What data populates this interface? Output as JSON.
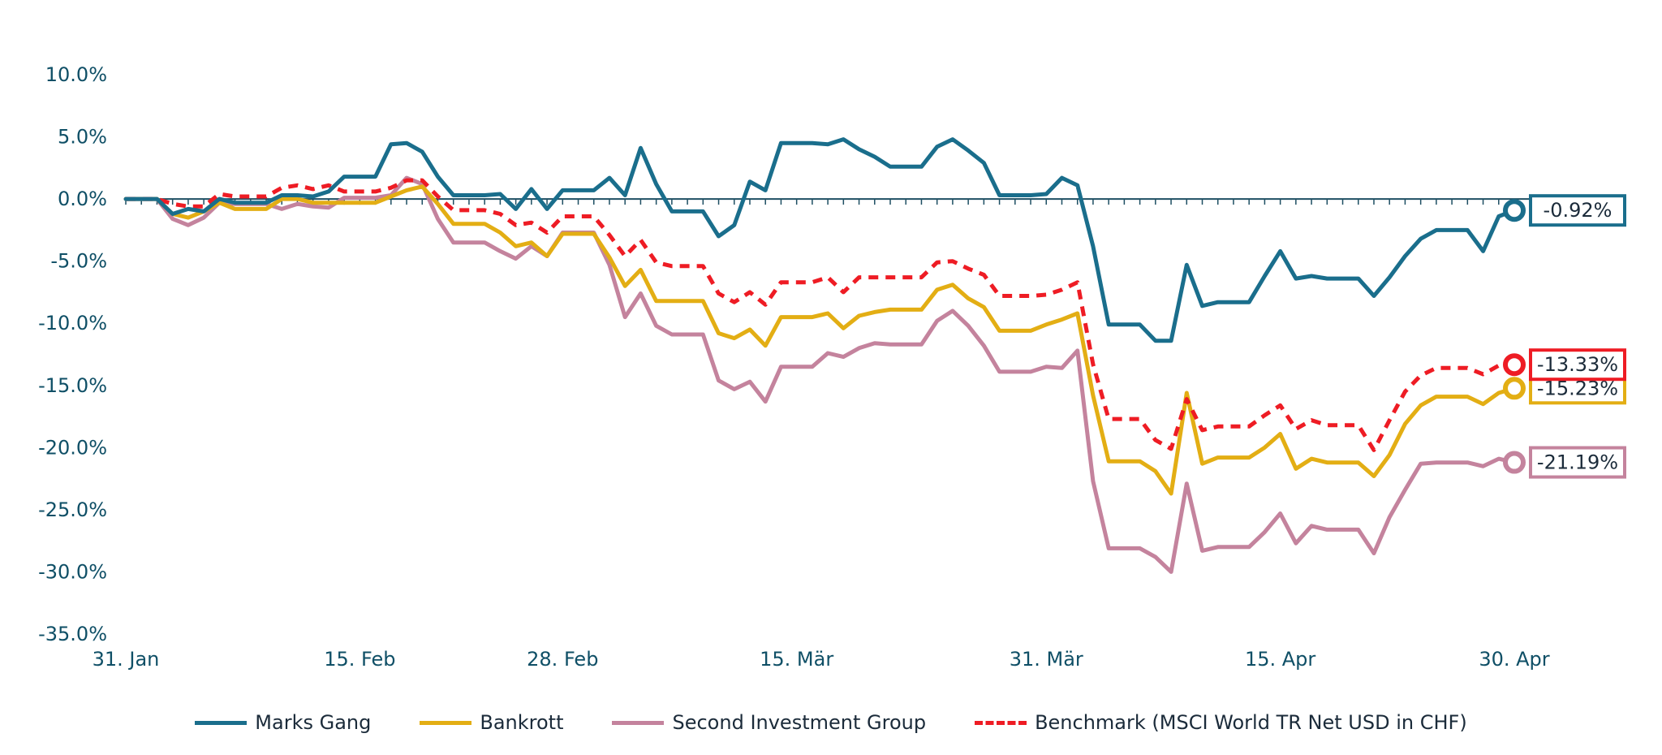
{
  "chart_data": {
    "type": "line",
    "title": "",
    "xlabel": "",
    "ylabel": "",
    "ylim": [
      -35,
      10
    ],
    "yticks": [
      10,
      5,
      0,
      -5,
      -10,
      -15,
      -20,
      -25,
      -30,
      -35
    ],
    "ytick_labels": [
      "10.0%",
      "5.0%",
      "0.0%",
      "-5.0%",
      "-10.0%",
      "-15.0%",
      "-20.0%",
      "-25.0%",
      "-30.0%",
      "-35.0%"
    ],
    "xlim": [
      0,
      89
    ],
    "xticks": [
      {
        "index": 0,
        "label": "31. Jan"
      },
      {
        "index": 15,
        "label": "15. Feb"
      },
      {
        "index": 28,
        "label": "28. Feb"
      },
      {
        "index": 43,
        "label": "15. Mär"
      },
      {
        "index": 59,
        "label": "31. Mär"
      },
      {
        "index": 74,
        "label": "15. Apr"
      },
      {
        "index": 89,
        "label": "30. Apr"
      }
    ],
    "zero_line_ticks": true,
    "legend_position": "bottom",
    "series": [
      {
        "name": "Marks Gang",
        "color": "#1a6e8c",
        "dashed": false,
        "end_label": "-0.92%",
        "values": [
          0,
          0,
          0,
          -1.2,
          -0.8,
          -1,
          0,
          -0.3,
          -0.3,
          -0.3,
          0.3,
          0.3,
          0.2,
          0.6,
          1.8,
          1.8,
          1.8,
          4.4,
          4.5,
          3.8,
          1.8,
          0.3,
          0.3,
          0.3,
          0.4,
          -0.8,
          0.8,
          -0.8,
          0.7,
          0.7,
          0.7,
          1.7,
          0.3,
          4.1,
          1.2,
          -1,
          -1,
          -1,
          -3,
          -2.1,
          1.4,
          0.7,
          4.5,
          4.5,
          4.5,
          4.4,
          4.8,
          4,
          3.4,
          2.6,
          2.6,
          2.6,
          4.2,
          4.8,
          3.9,
          2.9,
          0.3,
          0.3,
          0.3,
          0.4,
          1.7,
          1.1,
          -3.8,
          -10.1,
          -10.1,
          -10.1,
          -11.4,
          -11.4,
          -5.3,
          -8.6,
          -8.3,
          -8.3,
          -8.3,
          -6.2,
          -4.2,
          -6.4,
          -6.2,
          -6.4,
          -6.4,
          -6.4,
          -7.8,
          -6.3,
          -4.6,
          -3.2,
          -2.5,
          -2.5,
          -2.5,
          -4.2,
          -1.4,
          -0.92
        ]
      },
      {
        "name": "Bankrott",
        "color": "#e3ae14",
        "dashed": false,
        "end_label": "-15.23%",
        "values": [
          0,
          0,
          0,
          -1.2,
          -1.5,
          -1,
          -0.3,
          -0.8,
          -0.8,
          -0.8,
          0,
          0,
          -0.3,
          -0.3,
          -0.3,
          -0.3,
          -0.3,
          0.2,
          0.7,
          1,
          -0.4,
          -2,
          -2,
          -2,
          -2.7,
          -3.8,
          -3.5,
          -4.6,
          -2.8,
          -2.8,
          -2.8,
          -4.7,
          -7,
          -5.7,
          -8.2,
          -8.2,
          -8.2,
          -8.2,
          -10.8,
          -11.2,
          -10.5,
          -11.8,
          -9.5,
          -9.5,
          -9.5,
          -9.2,
          -10.4,
          -9.4,
          -9.1,
          -8.9,
          -8.9,
          -8.9,
          -7.3,
          -6.9,
          -8,
          -8.7,
          -10.6,
          -10.6,
          -10.6,
          -10.1,
          -9.7,
          -9.2,
          -15.8,
          -21.1,
          -21.1,
          -21.1,
          -21.9,
          -23.7,
          -15.6,
          -21.3,
          -20.8,
          -20.8,
          -20.8,
          -20,
          -18.9,
          -21.7,
          -20.9,
          -21.2,
          -21.2,
          -21.2,
          -22.3,
          -20.6,
          -18.1,
          -16.6,
          -15.9,
          -15.9,
          -15.9,
          -16.5,
          -15.6,
          -15.23
        ]
      },
      {
        "name": "Second Investment Group",
        "color": "#c4839d",
        "dashed": false,
        "end_label": "-21.19%",
        "values": [
          0,
          0,
          0,
          -1.6,
          -2.1,
          -1.5,
          -0.3,
          -0.4,
          -0.4,
          -0.4,
          -0.8,
          -0.4,
          -0.6,
          -0.7,
          0.1,
          0.1,
          0.1,
          0.3,
          1.7,
          1.2,
          -1.6,
          -3.5,
          -3.5,
          -3.5,
          -4.2,
          -4.8,
          -3.8,
          -4.6,
          -2.7,
          -2.7,
          -2.7,
          -5.3,
          -9.5,
          -7.6,
          -10.2,
          -10.9,
          -10.9,
          -10.9,
          -14.6,
          -15.3,
          -14.7,
          -16.3,
          -13.5,
          -13.5,
          -13.5,
          -12.4,
          -12.7,
          -12,
          -11.6,
          -11.7,
          -11.7,
          -11.7,
          -9.8,
          -9,
          -10.2,
          -11.8,
          -13.9,
          -13.9,
          -13.9,
          -13.5,
          -13.6,
          -12.2,
          -22.7,
          -28.1,
          -28.1,
          -28.1,
          -28.8,
          -30,
          -22.9,
          -28.3,
          -28,
          -28,
          -28,
          -26.8,
          -25.3,
          -27.7,
          -26.3,
          -26.6,
          -26.6,
          -26.6,
          -28.5,
          -25.6,
          -23.4,
          -21.3,
          -21.2,
          -21.2,
          -21.2,
          -21.5,
          -20.9,
          -21.19
        ]
      },
      {
        "name": "Benchmark (MSCI World TR Net USD in CHF)",
        "color": "#ee1c24",
        "dashed": true,
        "end_label": "-13.33%",
        "values": [
          0,
          0,
          0,
          -0.4,
          -0.6,
          -0.6,
          0.4,
          0.2,
          0.2,
          0.2,
          0.9,
          1.1,
          0.8,
          1.1,
          0.6,
          0.6,
          0.6,
          0.9,
          1.5,
          1.5,
          0.2,
          -0.9,
          -0.9,
          -0.9,
          -1.2,
          -2.1,
          -1.9,
          -2.7,
          -1.4,
          -1.4,
          -1.4,
          -2.9,
          -4.6,
          -3.3,
          -5.1,
          -5.4,
          -5.4,
          -5.4,
          -7.6,
          -8.3,
          -7.5,
          -8.5,
          -6.7,
          -6.7,
          -6.7,
          -6.3,
          -7.5,
          -6.3,
          -6.3,
          -6.3,
          -6.3,
          -6.3,
          -5.1,
          -5,
          -5.6,
          -6.1,
          -7.8,
          -7.8,
          -7.8,
          -7.7,
          -7.3,
          -6.7,
          -13.3,
          -17.7,
          -17.7,
          -17.7,
          -19.4,
          -20.1,
          -16.1,
          -18.6,
          -18.3,
          -18.3,
          -18.3,
          -17.4,
          -16.6,
          -18.5,
          -17.8,
          -18.2,
          -18.2,
          -18.2,
          -20.2,
          -17.8,
          -15.5,
          -14.2,
          -13.6,
          -13.6,
          -13.6,
          -14.1,
          -13.4,
          -13.33
        ]
      }
    ]
  }
}
